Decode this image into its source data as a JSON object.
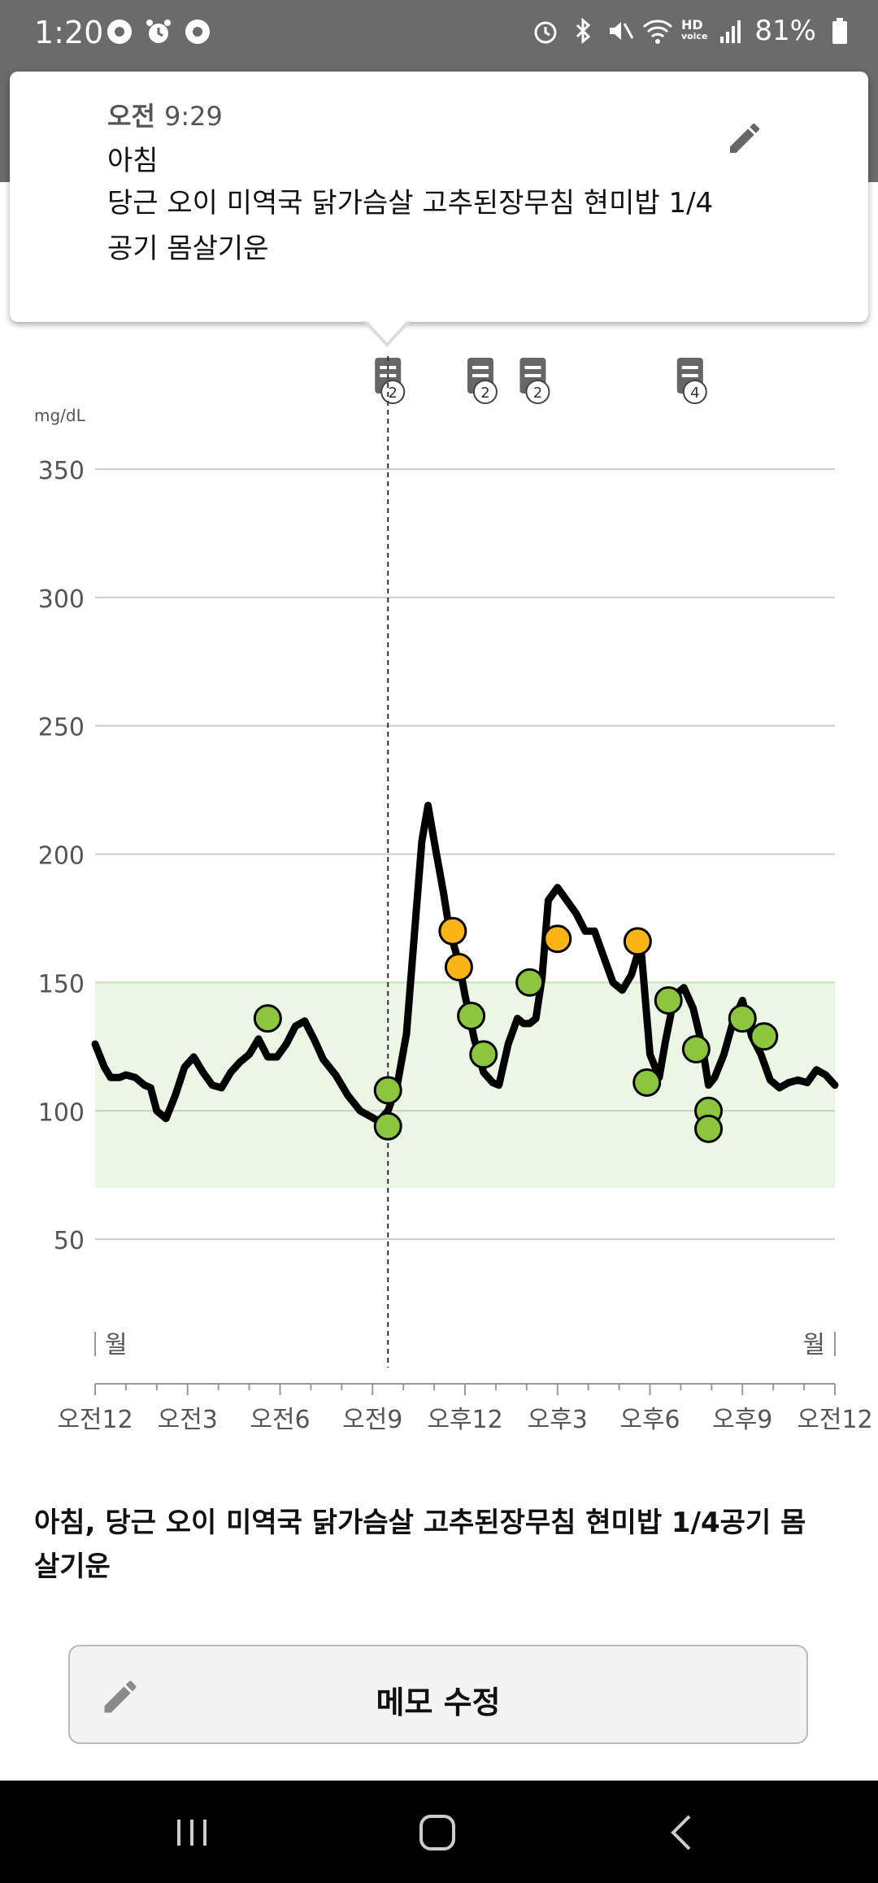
{
  "status_bar": {
    "time": "1:20",
    "battery": "81%",
    "hd_voice": "HD",
    "hd_voice_sub": "voice"
  },
  "popup": {
    "period": "오전",
    "time": "9:29",
    "meal": "아침",
    "memo": "당근 오이 미역국 닭가슴살 고추된장무침 현미밥 1/4공기 몸살기운"
  },
  "chart_data": {
    "type": "line",
    "ylabel": "mg/dL",
    "ylim": [
      0,
      370
    ],
    "yticks": [
      50,
      100,
      150,
      200,
      250,
      300,
      350
    ],
    "target_range": [
      70,
      150
    ],
    "x_tick_labels": [
      "오전12",
      "오전3",
      "오전6",
      "오전9",
      "오후12",
      "오후3",
      "오후6",
      "오후9",
      "오전12"
    ],
    "x_range_hours": [
      0,
      24
    ],
    "day_labels": [
      "월",
      "월"
    ],
    "selected_hour": 9.5,
    "memo_markers": [
      {
        "hour": 9.5,
        "count": "2"
      },
      {
        "hour": 12.5,
        "count": "2"
      },
      {
        "hour": 14.2,
        "count": "2"
      },
      {
        "hour": 19.3,
        "count": "4"
      }
    ],
    "series": [
      {
        "x": [
          0,
          0.3,
          0.5,
          0.8,
          1.0,
          1.3,
          1.6,
          1.8,
          2.0,
          2.3,
          2.6,
          2.9,
          3.2,
          3.5,
          3.8,
          4.1,
          4.4,
          4.7,
          5.0,
          5.3,
          5.6,
          5.9,
          6.2,
          6.5,
          6.8,
          7.1,
          7.4,
          7.8,
          8.2,
          8.6,
          8.9,
          9.2,
          9.5,
          9.8,
          10.1,
          10.4,
          10.6,
          10.8,
          11.0,
          11.3,
          11.5,
          11.8,
          12.0,
          12.3,
          12.6,
          12.9,
          13.1,
          13.4,
          13.7,
          13.9,
          14.1,
          14.3,
          14.5,
          14.7,
          15.0,
          15.3,
          15.6,
          15.9,
          16.2,
          16.5,
          16.8,
          17.1,
          17.4,
          17.7,
          18.0,
          18.3,
          18.5,
          18.8,
          19.1,
          19.4,
          19.7,
          19.9,
          20.1,
          20.4,
          20.7,
          21.0,
          21.3,
          21.6,
          21.9,
          22.2,
          22.5,
          22.8,
          23.1,
          23.4,
          23.7,
          24.0
        ],
        "y": [
          126,
          117,
          113,
          113,
          114,
          113,
          110,
          109,
          100,
          97,
          106,
          117,
          121,
          115,
          110,
          109,
          115,
          119,
          122,
          128,
          121,
          121,
          126,
          133,
          135,
          128,
          120,
          114,
          106,
          100,
          98,
          96,
          100,
          110,
          130,
          175,
          205,
          219,
          205,
          185,
          170,
          158,
          145,
          128,
          115,
          111,
          110,
          126,
          136,
          134,
          134,
          136,
          152,
          182,
          187,
          182,
          177,
          170,
          170,
          160,
          150,
          147,
          153,
          165,
          122,
          113,
          127,
          145,
          148,
          140,
          125,
          110,
          113,
          122,
          135,
          143,
          129,
          122,
          112,
          109,
          111,
          112,
          111,
          116,
          114,
          110
        ]
      }
    ],
    "readings": [
      {
        "hour": 5.6,
        "value": 136,
        "status": "normal"
      },
      {
        "hour": 9.5,
        "value": 94,
        "status": "normal"
      },
      {
        "hour": 9.5,
        "value": 108,
        "status": "normal"
      },
      {
        "hour": 11.6,
        "value": 170,
        "status": "high"
      },
      {
        "hour": 11.8,
        "value": 156,
        "status": "high"
      },
      {
        "hour": 12.2,
        "value": 137,
        "status": "normal"
      },
      {
        "hour": 12.6,
        "value": 122,
        "status": "normal"
      },
      {
        "hour": 14.1,
        "value": 150,
        "status": "normal"
      },
      {
        "hour": 15.0,
        "value": 167,
        "status": "high"
      },
      {
        "hour": 17.6,
        "value": 166,
        "status": "high"
      },
      {
        "hour": 17.9,
        "value": 111,
        "status": "normal"
      },
      {
        "hour": 18.6,
        "value": 143,
        "status": "normal"
      },
      {
        "hour": 19.5,
        "value": 124,
        "status": "normal"
      },
      {
        "hour": 19.9,
        "value": 100,
        "status": "normal"
      },
      {
        "hour": 19.9,
        "value": 93,
        "status": "normal"
      },
      {
        "hour": 21.0,
        "value": 136,
        "status": "normal"
      },
      {
        "hour": 21.7,
        "value": 129,
        "status": "normal"
      }
    ],
    "colors": {
      "line": "#000000",
      "normal": "#8cc63f",
      "high": "#fbb416",
      "target_band": "#ebf6e5",
      "grid": "#cccccc",
      "axis_text": "#555555"
    }
  },
  "memo_text": "아침, 당근 오이 미역국 닭가슴살 고추된장무침 현미밥 1/4공기 몸살기운",
  "memo_button": {
    "label": "메모 수정"
  },
  "icons": {
    "edit": "pencil-icon",
    "memo": "note-icon",
    "nav": [
      "recent-apps-icon",
      "home-icon",
      "back-icon"
    ]
  }
}
